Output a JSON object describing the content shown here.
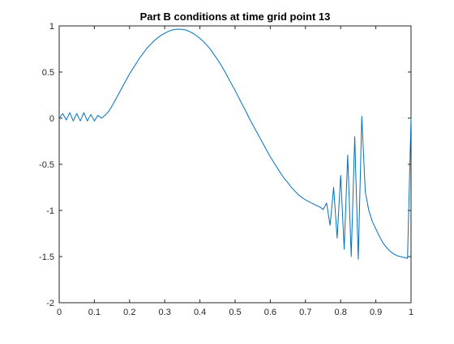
{
  "chart_data": {
    "type": "line",
    "title": "Part B conditions at time grid point 13",
    "xlabel": "",
    "ylabel": "",
    "xlim": [
      0,
      1
    ],
    "ylim": [
      -2,
      1
    ],
    "xticks": [
      0,
      0.1,
      0.2,
      0.3,
      0.4,
      0.5,
      0.6,
      0.7,
      0.8,
      0.9,
      1
    ],
    "xtick_labels": [
      "0",
      "0.1",
      "0.2",
      "0.3",
      "0.4",
      "0.5",
      "0.6",
      "0.7",
      "0.8",
      "0.9",
      "1"
    ],
    "yticks": [
      -2,
      -1.5,
      -1,
      -0.5,
      0,
      0.5,
      1
    ],
    "ytick_labels": [
      "-2",
      "-1.5",
      "-1",
      "-0.5",
      "0",
      "0.5",
      "1"
    ],
    "grid": false,
    "box": true,
    "series": [
      {
        "color": "#0072BD",
        "x": [
          0,
          0.01,
          0.02,
          0.03,
          0.04,
          0.05,
          0.06,
          0.07,
          0.08,
          0.09,
          0.1,
          0.11,
          0.12,
          0.13,
          0.14,
          0.15,
          0.16,
          0.17,
          0.18,
          0.19,
          0.2,
          0.21,
          0.22,
          0.23,
          0.24,
          0.25,
          0.26,
          0.27,
          0.28,
          0.29,
          0.3,
          0.31,
          0.32,
          0.33,
          0.34,
          0.35,
          0.36,
          0.37,
          0.38,
          0.39,
          0.4,
          0.41,
          0.42,
          0.43,
          0.44,
          0.45,
          0.46,
          0.47,
          0.48,
          0.49,
          0.5,
          0.51,
          0.52,
          0.53,
          0.54,
          0.55,
          0.56,
          0.57,
          0.58,
          0.59,
          0.6,
          0.61,
          0.62,
          0.63,
          0.64,
          0.65,
          0.66,
          0.67,
          0.68,
          0.69,
          0.7,
          0.71,
          0.72,
          0.73,
          0.74,
          0.75,
          0.76,
          0.77,
          0.78,
          0.79,
          0.8,
          0.81,
          0.82,
          0.83,
          0.84,
          0.85,
          0.86,
          0.87,
          0.88,
          0.89,
          0.9,
          0.91,
          0.92,
          0.93,
          0.94,
          0.95,
          0.96,
          0.97,
          0.98,
          0.99,
          1.0
        ],
        "y": [
          0.0,
          0.05,
          -0.02,
          0.06,
          -0.03,
          0.05,
          -0.03,
          0.06,
          -0.03,
          0.04,
          -0.03,
          0.03,
          0.0,
          0.03,
          0.07,
          0.13,
          0.2,
          0.27,
          0.34,
          0.41,
          0.48,
          0.54,
          0.6,
          0.66,
          0.71,
          0.76,
          0.8,
          0.84,
          0.87,
          0.9,
          0.92,
          0.94,
          0.955,
          0.962,
          0.965,
          0.962,
          0.955,
          0.94,
          0.92,
          0.895,
          0.865,
          0.83,
          0.79,
          0.745,
          0.69,
          0.635,
          0.575,
          0.51,
          0.44,
          0.37,
          0.3,
          0.225,
          0.15,
          0.08,
          0.0,
          -0.07,
          -0.14,
          -0.21,
          -0.28,
          -0.35,
          -0.42,
          -0.48,
          -0.54,
          -0.6,
          -0.655,
          -0.7,
          -0.75,
          -0.79,
          -0.83,
          -0.86,
          -0.885,
          -0.905,
          -0.925,
          -0.945,
          -0.96,
          -0.99,
          -0.92,
          -1.16,
          -0.75,
          -1.3,
          -0.62,
          -1.42,
          -0.4,
          -1.5,
          -0.2,
          -1.53,
          0.02,
          -0.8,
          -1.0,
          -1.12,
          -1.2,
          -1.28,
          -1.35,
          -1.4,
          -1.44,
          -1.47,
          -1.49,
          -1.5,
          -1.51,
          -1.52,
          0.0
        ]
      }
    ]
  }
}
